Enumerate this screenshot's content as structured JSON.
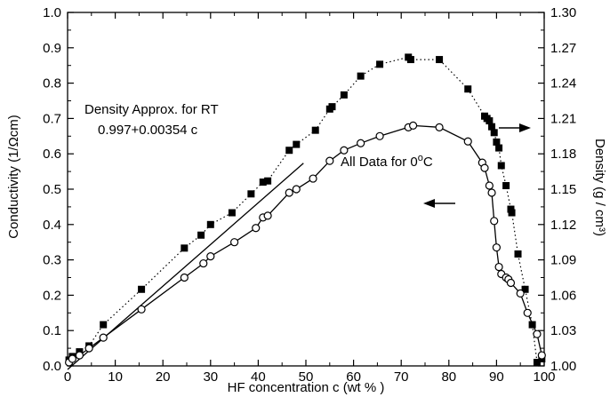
{
  "chart_data": {
    "type": "scatter",
    "title": "",
    "xlabel": "HF concentration c (wt  % )",
    "ylabel_left": "Conductivity (1/Ωcm)",
    "ylabel_right": "Density (g / cm³)",
    "xlim": [
      0,
      100
    ],
    "ylim_left": [
      0.0,
      1.0
    ],
    "ylim_right": [
      1.0,
      1.3
    ],
    "x_ticks": [
      "0",
      "10",
      "20",
      "30",
      "40",
      "50",
      "60",
      "70",
      "80",
      "90",
      "100"
    ],
    "y_left_ticks": [
      "0.0",
      "0.1",
      "0.2",
      "0.3",
      "0.4",
      "0.5",
      "0.6",
      "0.7",
      "0.8",
      "0.9",
      "1.0"
    ],
    "y_right_ticks": [
      "1.00",
      "1.03",
      "1.06",
      "1.09",
      "1.12",
      "1.15",
      "1.18",
      "1.21",
      "1.24",
      "1.27",
      "1.30"
    ],
    "grid": false,
    "annotations": {
      "density_approx_line1": "Density Approx. for RT",
      "density_approx_line2": "0.997+0.00354 c",
      "all_data": "All Data for 0",
      "all_data_sup": "o",
      "all_data_end": "C"
    },
    "series": [
      {
        "name": "Density",
        "axis": "right",
        "marker": "filled-square",
        "line": "dotted",
        "x": [
          0.3,
          1.0,
          2.5,
          4.5,
          7.5,
          15.5,
          24.5,
          28.0,
          30.0,
          34.5,
          38.5,
          41.0,
          42.0,
          46.5,
          48.0,
          52.0,
          55.0,
          55.5,
          58.0,
          61.5,
          65.5,
          71.5,
          72.0,
          78.0,
          84.0,
          87.5,
          88.0,
          88.5,
          89.0,
          89.5,
          90.0,
          90.5,
          91.0,
          92.0,
          93.0,
          93.2,
          94.5,
          96.0,
          97.5,
          98.5,
          99.5
        ],
        "y": [
          1.005,
          1.008,
          1.012,
          1.017,
          1.035,
          1.065,
          1.1,
          1.111,
          1.12,
          1.13,
          1.146,
          1.156,
          1.157,
          1.183,
          1.188,
          1.2,
          1.218,
          1.22,
          1.23,
          1.246,
          1.256,
          1.262,
          1.26,
          1.26,
          1.235,
          1.212,
          1.21,
          1.208,
          1.203,
          1.198,
          1.19,
          1.185,
          1.17,
          1.153,
          1.133,
          1.13,
          1.095,
          1.065,
          1.035,
          1.003,
          1.006
        ]
      },
      {
        "name": "Conductivity",
        "axis": "left",
        "marker": "open-circle",
        "line": "solid",
        "x": [
          0.3,
          1.0,
          2.5,
          4.5,
          7.5,
          15.5,
          24.5,
          28.5,
          30.0,
          35.0,
          39.5,
          41.0,
          42.0,
          46.5,
          48.0,
          51.5,
          55.0,
          58.0,
          61.5,
          65.5,
          71.5,
          72.5,
          78.0,
          84.0,
          87.0,
          87.5,
          88.5,
          89.0,
          89.5,
          90.0,
          90.5,
          91.0,
          92.0,
          92.5,
          93.0,
          95.0,
          96.5,
          98.5,
          99.5
        ],
        "y": [
          0.01,
          0.02,
          0.03,
          0.05,
          0.08,
          0.16,
          0.25,
          0.29,
          0.31,
          0.35,
          0.39,
          0.42,
          0.425,
          0.49,
          0.5,
          0.53,
          0.58,
          0.61,
          0.63,
          0.65,
          0.675,
          0.68,
          0.675,
          0.635,
          0.575,
          0.56,
          0.51,
          0.49,
          0.41,
          0.335,
          0.28,
          0.26,
          0.25,
          0.245,
          0.235,
          0.205,
          0.15,
          0.09,
          0.03
        ]
      },
      {
        "name": "Density Approx. for RT",
        "axis": "right",
        "marker": "none",
        "line": "solid",
        "x": [
          0,
          49.5
        ],
        "y": [
          0.997,
          1.172
        ]
      }
    ],
    "arrows": [
      {
        "direction": "right",
        "points_to": "right-axis"
      },
      {
        "direction": "left",
        "points_to": "left-axis"
      }
    ]
  }
}
